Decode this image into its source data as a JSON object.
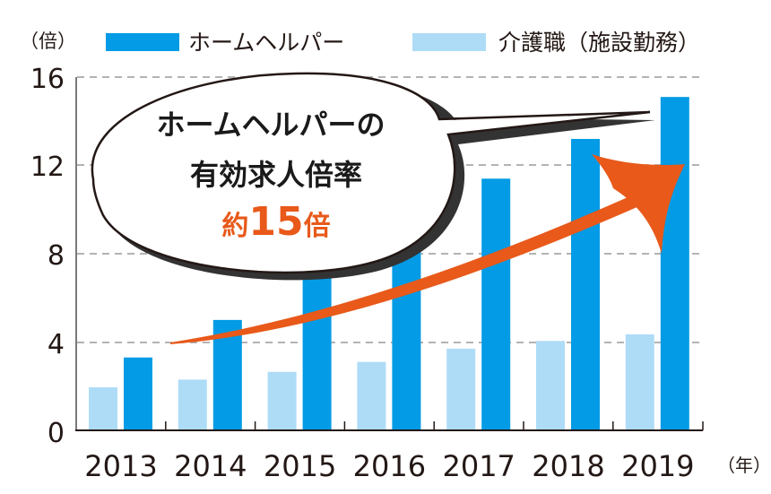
{
  "chart_data": {
    "type": "bar",
    "title": "",
    "ylabel": "（倍）",
    "xlabel": "（年）",
    "ylim": [
      0,
      16
    ],
    "yticks": [
      0,
      4,
      8,
      12,
      16
    ],
    "grid": "horizontal dashed",
    "legend_position": "top",
    "categories": [
      "2013",
      "2014",
      "2015",
      "2016",
      "2017",
      "2018",
      "2019"
    ],
    "series": [
      {
        "name": "介護職（施設勤務）",
        "color": "#aedcf7",
        "values": [
          1.95,
          2.3,
          2.65,
          3.1,
          3.7,
          4.05,
          4.35
        ]
      },
      {
        "name": "ホームヘルパー",
        "color": "#039be5",
        "values": [
          3.3,
          5.0,
          7.5,
          9.2,
          11.4,
          13.2,
          15.1
        ]
      }
    ],
    "annotations": [
      {
        "type": "speech-bubble",
        "lines": [
          "ホームヘルパーの",
          "有効求人倍率",
          "約15倍"
        ],
        "highlight_color": "#e8591a"
      },
      {
        "type": "trend-arrow",
        "color": "#e8591a",
        "from": "2013",
        "to": "2019"
      }
    ]
  },
  "legend": {
    "unit_label": "（倍）",
    "items": [
      {
        "label": "ホームヘルパー",
        "color": "#039be5"
      },
      {
        "label": "介護職（施設勤務）",
        "color": "#aedcf7"
      }
    ]
  },
  "callout": {
    "line1": "ホームヘルパーの",
    "line2": "有効求人倍率",
    "line3_prefix": "約",
    "line3_number": "15",
    "line3_suffix": "倍"
  },
  "axis": {
    "y_ticks": [
      "16",
      "12",
      "8",
      "4",
      "0"
    ],
    "x_ticks": [
      "2013",
      "2014",
      "2015",
      "2016",
      "2017",
      "2018",
      "2019"
    ],
    "x_unit": "（年）"
  }
}
